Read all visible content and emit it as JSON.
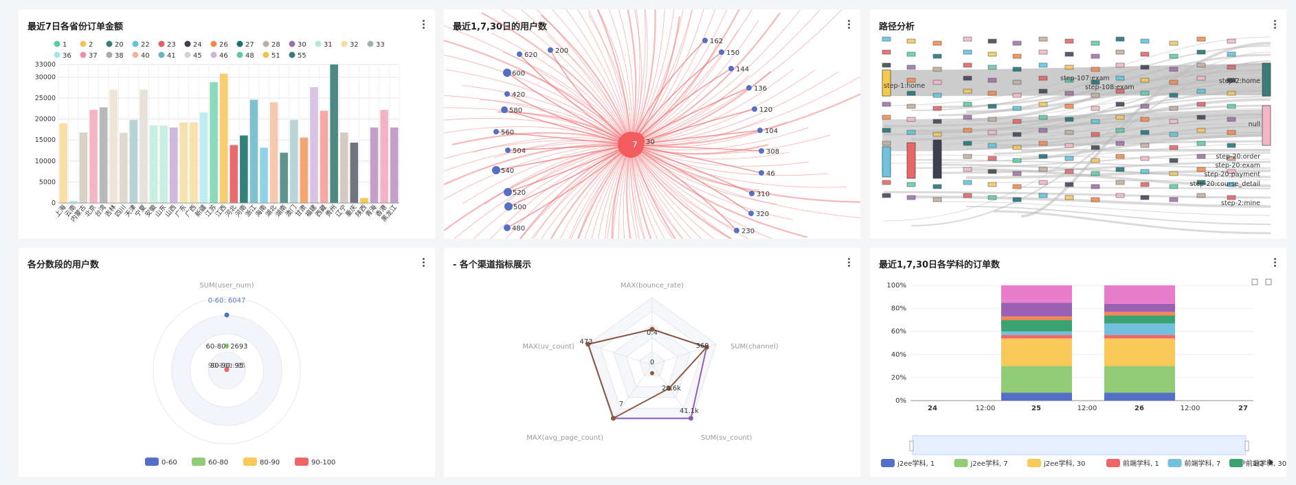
{
  "panels": {
    "orders_by_province": {
      "title": "最近7日各省份订单金额"
    },
    "users_1_7_30": {
      "title": "最近1,7,30日的用户数"
    },
    "path_analysis": {
      "title": "路径分析"
    },
    "score_users": {
      "title": "各分数段的用户数"
    },
    "channel_metrics": {
      "title": "- 各个渠道指标展示"
    },
    "subject_orders": {
      "title": "最近1,7,30日各学科的订单数"
    }
  },
  "chart_data": [
    {
      "id": "orders_by_province",
      "type": "bar",
      "ylim": [
        0,
        33000
      ],
      "yticks": [
        "0",
        "5000",
        "10000",
        "15000",
        "20000",
        "25000",
        "30000",
        "33000"
      ],
      "legend_row1": [
        "1",
        "2",
        "20",
        "22",
        "23",
        "24",
        "26",
        "27",
        "28",
        "30",
        "31",
        "32",
        "33"
      ],
      "legend_row2": [
        "36",
        "37",
        "38",
        "40",
        "41",
        "45",
        "46",
        "48",
        "51",
        "55"
      ],
      "legend_colors_row1": [
        "#5bcba3",
        "#f4c55a",
        "#3c7a75",
        "#5ec3dd",
        "#e06063",
        "#3c3f4e",
        "#f4874b",
        "#1a6f75",
        "#c1ad9b",
        "#9b6fa5",
        "#b2e9dc",
        "#f8d9a0",
        "#9bb3b5"
      ],
      "legend_colors_row2": [
        "#a9e3ef",
        "#ee8bb0",
        "#a9a9ab",
        "#f4b0a0",
        "#6fb0c0",
        "#d5d3cb",
        "#cdb3d8",
        "#64c7a1",
        "#f4c345",
        "#3e7a74"
      ],
      "categories": [
        "上海",
        "云南",
        "内蒙古",
        "北京",
        "台湾",
        "吉林",
        "四川",
        "天津",
        "宁夏",
        "安徽",
        "山东",
        "山西",
        "广东",
        "广西",
        "新疆",
        "江苏",
        "江西",
        "河北",
        "河南",
        "浙江",
        "海南",
        "湖北",
        "湖南",
        "澳门",
        "甘肃",
        "福建",
        "西藏",
        "贵州",
        "辽宁",
        "重庆",
        "陕西",
        "青海",
        "香港",
        "黑龙江"
      ],
      "values": [
        19000,
        500,
        16800,
        22200,
        22800,
        27000,
        16700,
        19800,
        27000,
        18500,
        18500,
        18000,
        19200,
        19200,
        21600,
        28800,
        30800,
        13800,
        16100,
        24600,
        13200,
        24000,
        12000,
        19800,
        15600,
        27600,
        22000,
        33000,
        16800,
        14400,
        1200,
        18000,
        22200,
        18000
      ],
      "colors": [
        "#f8dfa6",
        "#b5e6ec",
        "#d9d0c7",
        "#f4b6c6",
        "#b7b8ba",
        "#f0e6d8",
        "#e1d9cf",
        "#b7d4d5",
        "#e6e2da",
        "#c9efe4",
        "#c9efe4",
        "#d0b8dc",
        "#f8e2ab",
        "#f8e2ab",
        "#bdeef2",
        "#8dd9bc",
        "#f6ce6f",
        "#e86b6e",
        "#36807c",
        "#7fc2cf",
        "#8ed3e6",
        "#f6c8ae",
        "#5f958f",
        "#b8d6d8",
        "#f6a672",
        "#d9c3e2",
        "#f5a8a5",
        "#4e8a82",
        "#d4ccc3",
        "#71737e",
        "#f6c94e",
        "#c3a0cb",
        "#f3b3c4",
        "#c3a0cb"
      ]
    },
    {
      "id": "users_1_7_30",
      "type": "graph",
      "center_labels": [
        "7",
        "30"
      ],
      "node_labels": [
        "620",
        "200",
        "600",
        "420",
        "580",
        "560",
        "504",
        "540",
        "520",
        "500",
        "480",
        "162",
        "150",
        "144",
        "136",
        "120",
        "104",
        "308",
        "46",
        "310",
        "320",
        "230"
      ]
    },
    {
      "id": "path_analysis",
      "type": "sankey",
      "node_labels": [
        "step-1:home",
        "step-107:exam",
        "step-108:exam",
        "step-2:home",
        "null",
        "step-20:order",
        "step-20:exam",
        "step-20:payment",
        "step-20:course_detail",
        "step-2:mine"
      ]
    },
    {
      "id": "score_users",
      "type": "polar",
      "axis_label": "SUM(user_num)",
      "point_labels": [
        "0-60: 6047",
        "60-80: 2693",
        "80-90: 95",
        "90-100: 95"
      ],
      "point_values": [
        6047,
        2693,
        95,
        95
      ],
      "max": 8000,
      "legend": [
        "0-60",
        "60-80",
        "80-90",
        "90-100"
      ],
      "legend_colors": [
        "#5470c6",
        "#91cc75",
        "#fac858",
        "#ee6666"
      ]
    },
    {
      "id": "channel_metrics",
      "type": "radar",
      "indicators": [
        "MAX(bounce_rate)",
        "SUM(channel)",
        "SUM(sv_count)",
        "MAX(avg_page_count)",
        "MAX(uv_count)"
      ],
      "value_labels": [
        "0.4",
        "0",
        "360",
        "20.6k",
        "41.1k",
        "7",
        "473"
      ],
      "series": [
        {
          "values": [
            0.53,
            0.85,
            0.98,
            0.98,
            1.0
          ],
          "color": "#8e5fb8"
        },
        {
          "values": [
            0.53,
            0.85,
            0.43,
            0.98,
            1.0
          ],
          "color": "#8b5a3c"
        }
      ],
      "inner_center": "0"
    },
    {
      "id": "subject_orders",
      "type": "bar",
      "stacked": "percent",
      "yticks": [
        "0%",
        "20%",
        "40%",
        "60%",
        "80%",
        "100%"
      ],
      "xticks": [
        "24",
        "12:00",
        "25",
        "12:00",
        "26",
        "12:00",
        "27"
      ],
      "bars": [
        {
          "segments": [
            0.07,
            0.23,
            0.24,
            0.03,
            0.03,
            0.1,
            0.03,
            0.12,
            0.02,
            0.13
          ]
        },
        {
          "segments": [
            0.07,
            0.23,
            0.24,
            0.03,
            0.1,
            0.07,
            0.03,
            0.07,
            0.02,
            0.14
          ]
        }
      ],
      "segment_colors": [
        "#5470c6",
        "#91cc75",
        "#fac858",
        "#ee6666",
        "#73c0de",
        "#3ba272",
        "#fc8452",
        "#9a60b4",
        "#ea7ccc",
        "#ea7ccc"
      ],
      "legend": [
        "j2ee学科, 1",
        "j2ee学科, 7",
        "j2ee学科, 30",
        "前端学科, 1",
        "前端学科, 7",
        "前端学科, 30"
      ],
      "legend_colors": [
        "#5470c6",
        "#91cc75",
        "#fac858",
        "#ee6666",
        "#73c0de",
        "#3ba272"
      ],
      "pager": "1/2"
    }
  ]
}
